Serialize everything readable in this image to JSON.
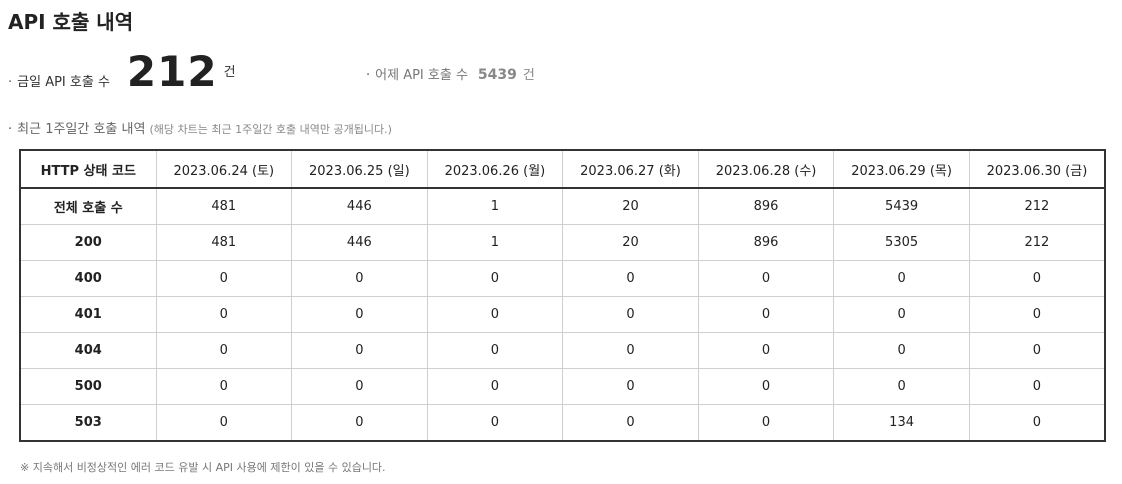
{
  "title": "API 호출 내역",
  "today": {
    "bullet": "·",
    "label": "금일 API 호출 수",
    "value": "212",
    "unit": "건"
  },
  "yesterday": {
    "bullet": "·",
    "label": "어제 API 호출 수",
    "value": "5439",
    "unit": "건"
  },
  "section": {
    "bullet": "·",
    "title": "최근 1주일간 호출 내역",
    "note": "(해당 차트는 최근 1주일간 호출 내역만 공개됩니다.)"
  },
  "table": {
    "headers": [
      "HTTP 상태 코드",
      "2023.06.24 (토)",
      "2023.06.25 (일)",
      "2023.06.26 (월)",
      "2023.06.27 (화)",
      "2023.06.28 (수)",
      "2023.06.29 (목)",
      "2023.06.30 (금)"
    ],
    "rows": [
      [
        "전체 호출 수",
        "481",
        "446",
        "1",
        "20",
        "896",
        "5439",
        "212"
      ],
      [
        "200",
        "481",
        "446",
        "1",
        "20",
        "896",
        "5305",
        "212"
      ],
      [
        "400",
        "0",
        "0",
        "0",
        "0",
        "0",
        "0",
        "0"
      ],
      [
        "401",
        "0",
        "0",
        "0",
        "0",
        "0",
        "0",
        "0"
      ],
      [
        "404",
        "0",
        "0",
        "0",
        "0",
        "0",
        "0",
        "0"
      ],
      [
        "500",
        "0",
        "0",
        "0",
        "0",
        "0",
        "0",
        "0"
      ],
      [
        "503",
        "0",
        "0",
        "0",
        "0",
        "0",
        "134",
        "0"
      ]
    ]
  },
  "footnote": "※ 지속해서 비정상적인 에러 코드 유발 시 API 사용에 제한이 있을 수 있습니다."
}
